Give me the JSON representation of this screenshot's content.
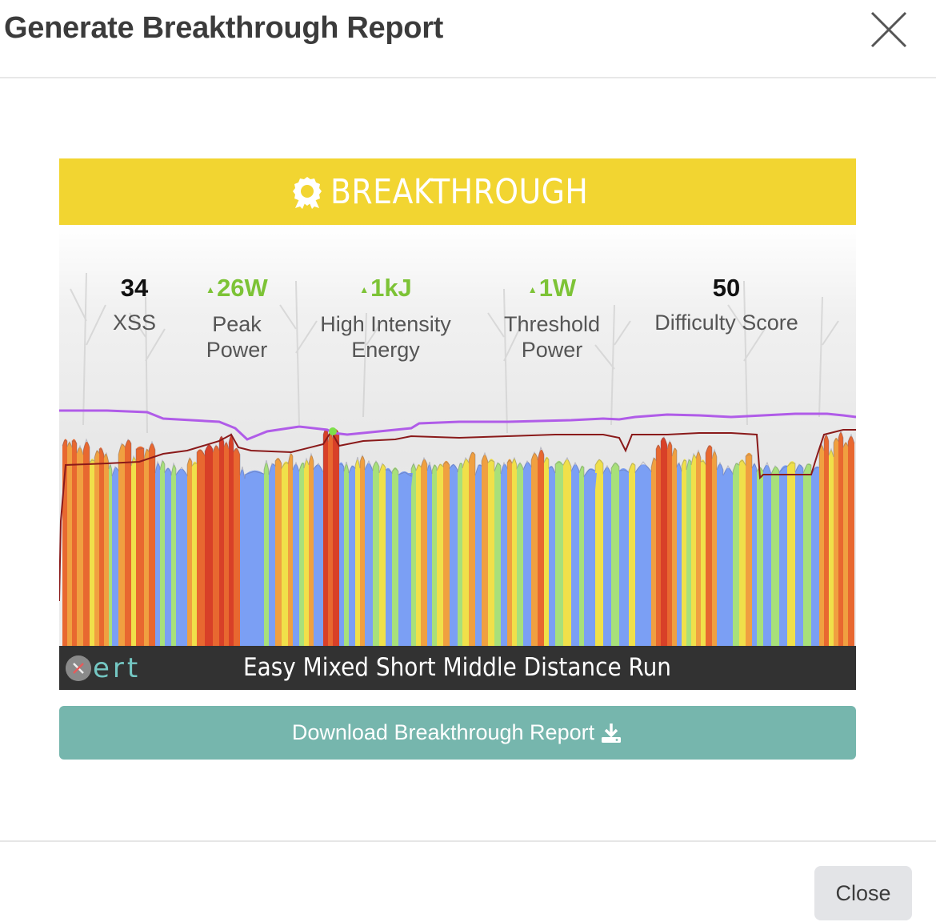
{
  "modal": {
    "title": "Generate Breakthrough Report",
    "close_icon": "close-icon"
  },
  "card": {
    "banner_text": "BREAKTHROUGH",
    "banner_icon": "award-badge-icon",
    "banner_color": "#f2d531",
    "stats": [
      {
        "value": "34",
        "label_line1": "XSS",
        "label_line2": "",
        "highlight": false
      },
      {
        "value": "26W",
        "label_line1": "Peak",
        "label_line2": "Power",
        "highlight": true
      },
      {
        "value": "1kJ",
        "label_line1": "High Intensity",
        "label_line2": "Energy",
        "highlight": true
      },
      {
        "value": "1W",
        "label_line1": "Threshold",
        "label_line2": "Power",
        "highlight": true
      },
      {
        "value": "50",
        "label_line1": "Difficulty Score",
        "label_line2": "",
        "highlight": false
      }
    ],
    "workout_title": "Easy Mixed Short Middle Distance Run",
    "logo_text": "ert",
    "logo_icon": "xert-logo-icon"
  },
  "chart_colors": {
    "blue": "#7b9ff4",
    "green": "#a8e07a",
    "yellow": "#f0e04a",
    "orange": "#f0a040",
    "red_orange": "#e86830",
    "red": "#d84028",
    "fitness_line": "#b05ce8",
    "mpa_line": "#8a1a1a"
  },
  "download_button": {
    "label": "Download Breakthrough Report",
    "icon": "download-icon",
    "color": "#76b6ad"
  },
  "footer": {
    "close_label": "Close"
  }
}
